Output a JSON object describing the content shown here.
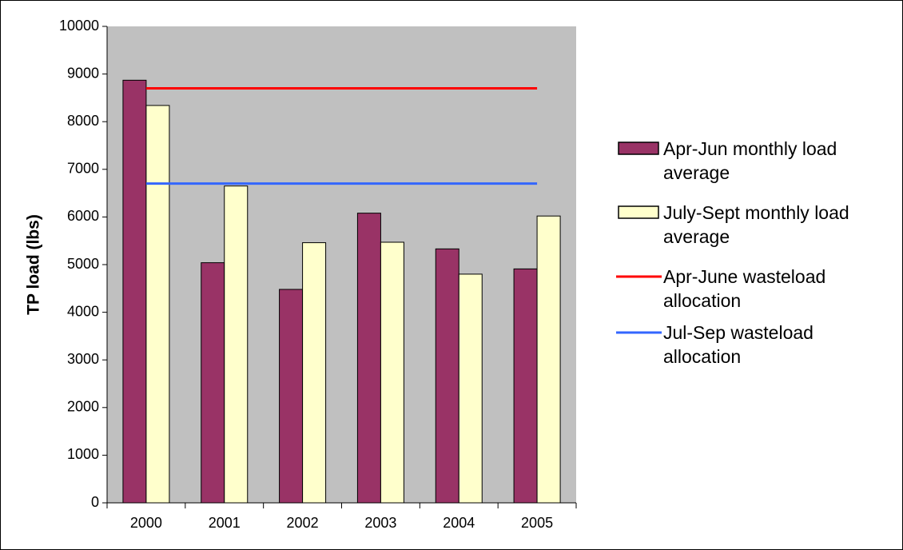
{
  "chart_data": {
    "type": "bar",
    "y_label": "TP load (lbs)",
    "categories": [
      "2000",
      "2001",
      "2002",
      "2003",
      "2004",
      "2005"
    ],
    "series": [
      {
        "name": "Apr-Jun monthly load average",
        "type": "bar",
        "color": "#993366",
        "values": [
          8870,
          5040,
          4480,
          6080,
          5330,
          4910
        ]
      },
      {
        "name": "July-Sept monthly load average",
        "type": "bar",
        "color": "#ffffcc",
        "values": [
          8340,
          6650,
          5460,
          5470,
          4800,
          6020
        ]
      },
      {
        "name": "Apr-June wasteload allocation",
        "type": "line",
        "color": "#ff0000",
        "values": [
          8700,
          8700,
          8700,
          8700,
          8700,
          8700
        ]
      },
      {
        "name": "Jul-Sep wasteload allocation",
        "type": "line",
        "color": "#3366ff",
        "values": [
          6700,
          6700,
          6700,
          6700,
          6700,
          6700
        ]
      }
    ],
    "ylim": [
      0,
      10000
    ],
    "yticks": [
      0,
      1000,
      2000,
      3000,
      4000,
      5000,
      6000,
      7000,
      8000,
      9000,
      10000
    ],
    "plot_background": "#c0c0c0",
    "legend": "right"
  }
}
